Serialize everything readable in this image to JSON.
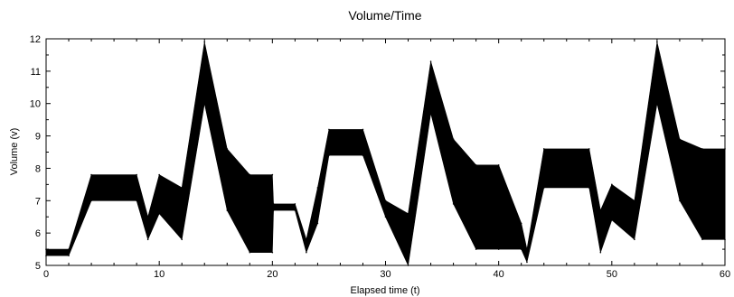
{
  "chart_data": {
    "type": "area",
    "title": "Volume/Time",
    "xlabel": "Elapsed time (t)",
    "ylabel": "Volume (v)",
    "xlim": [
      0,
      60
    ],
    "ylim": [
      5,
      12
    ],
    "x_ticks": [
      0,
      10,
      20,
      30,
      40,
      50,
      60
    ],
    "y_ticks": [
      5,
      6,
      7,
      8,
      9,
      10,
      11,
      12
    ],
    "grid": false,
    "series": [
      {
        "style": "dense oscillating band (filled between lower and upper envelope)",
        "color": "#000000",
        "x": [
          0,
          2,
          4,
          8,
          9,
          10,
          12,
          14,
          16,
          18,
          20,
          20.1,
          22,
          23,
          24,
          25,
          28,
          30,
          32,
          34,
          36,
          38,
          40,
          42,
          42.5,
          44,
          48,
          49,
          50,
          52,
          54,
          56,
          58,
          60
        ],
        "lower": [
          5.3,
          5.3,
          7.0,
          7.0,
          5.8,
          6.6,
          5.8,
          10.0,
          6.7,
          5.4,
          5.4,
          6.7,
          6.7,
          5.4,
          6.3,
          8.4,
          8.4,
          6.5,
          5.0,
          9.7,
          6.9,
          5.5,
          5.5,
          5.5,
          5.1,
          7.4,
          7.4,
          5.4,
          6.4,
          5.8,
          10.0,
          7.0,
          5.8,
          5.8
        ],
        "upper": [
          5.5,
          5.5,
          7.8,
          7.8,
          6.5,
          7.8,
          7.4,
          11.9,
          8.6,
          7.8,
          7.8,
          6.9,
          6.9,
          5.8,
          7.4,
          9.2,
          9.2,
          7.0,
          6.6,
          11.3,
          8.9,
          8.1,
          8.1,
          6.3,
          5.5,
          8.6,
          8.6,
          6.7,
          7.5,
          7.0,
          11.9,
          8.9,
          8.6,
          8.6
        ]
      }
    ]
  }
}
